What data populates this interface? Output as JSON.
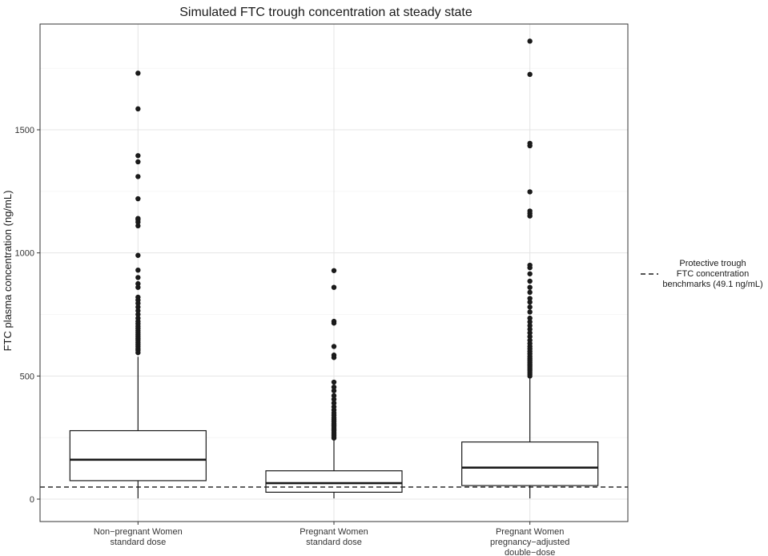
{
  "chart_data": {
    "type": "box",
    "title": "Simulated FTC trough concentration at steady state",
    "xlabel": "",
    "ylabel": "FTC plasma concentration (ng/mL)",
    "ylim": [
      -90,
      1880
    ],
    "yticks": [
      0,
      500,
      1000,
      1500
    ],
    "grid": true,
    "legend_position": "right",
    "categories": [
      [
        "Non−pregnant Women",
        "standard dose"
      ],
      [
        "Pregnant Women",
        "standard dose"
      ],
      [
        "Pregnant Women",
        "pregnancy−adjusted",
        "double−dose"
      ]
    ],
    "boxes": [
      {
        "min": 3,
        "q1": 75,
        "median": 160,
        "q3": 278,
        "whisker_high": 578,
        "outliers": [
          595,
          605,
          612,
          620,
          628,
          636,
          645,
          652,
          660,
          668,
          676,
          684,
          693,
          702,
          712,
          722,
          735,
          750,
          765,
          780,
          795,
          808,
          820,
          860,
          875,
          900,
          930,
          990,
          1110,
          1125,
          1135,
          1140,
          1220,
          1310,
          1370,
          1395,
          1585,
          1730
        ]
      },
      {
        "min": 3,
        "q1": 28,
        "median": 65,
        "q3": 115,
        "whisker_high": 240,
        "outliers": [
          248,
          254,
          260,
          266,
          272,
          278,
          284,
          290,
          296,
          302,
          308,
          315,
          322,
          330,
          340,
          350,
          362,
          375,
          390,
          405,
          420,
          440,
          455,
          475,
          575,
          585,
          620,
          715,
          722,
          860,
          928
        ]
      },
      {
        "min": 3,
        "q1": 55,
        "median": 128,
        "q3": 232,
        "whisker_high": 495,
        "outliers": [
          500,
          508,
          516,
          524,
          532,
          540,
          548,
          556,
          564,
          572,
          580,
          590,
          600,
          610,
          620,
          632,
          645,
          660,
          675,
          690,
          705,
          720,
          735,
          760,
          780,
          800,
          815,
          840,
          860,
          885,
          915,
          940,
          950,
          1150,
          1160,
          1170,
          1248,
          1435,
          1445,
          1725,
          1860
        ]
      }
    ],
    "reference_line": {
      "y": 49.1,
      "style": "dashed",
      "legend_label": [
        "Protective trough",
        "FTC concentration",
        "benchmarks (49.1 ng/mL)"
      ]
    }
  }
}
